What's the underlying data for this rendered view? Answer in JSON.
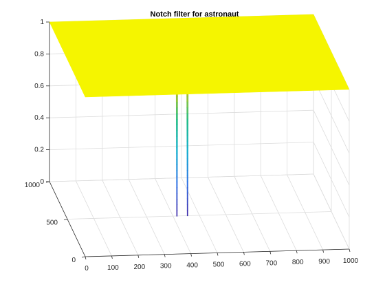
{
  "chart_data": {
    "type": "surface",
    "title": "Notch filter for astronaut",
    "xlabel": "",
    "ylabel": "",
    "zlabel": "",
    "xlim": [
      0,
      1000
    ],
    "ylim": [
      0,
      1000
    ],
    "zlim": [
      0,
      1
    ],
    "x_ticks": [
      "0",
      "100",
      "200",
      "300",
      "400",
      "500",
      "600",
      "700",
      "800",
      "900",
      "1000"
    ],
    "y_ticks": [
      "0",
      "500",
      "1000"
    ],
    "z_ticks": [
      "0",
      "0.2",
      "0.4",
      "0.6",
      "0.8",
      "1"
    ],
    "grid": true,
    "plateau_value": 1,
    "colormap": "parula",
    "notches": [
      {
        "x": 415,
        "y": 500,
        "min_value": 0
      },
      {
        "x": 455,
        "y": 500,
        "min_value": 0
      }
    ],
    "colors": {
      "plateau": "#f5f500",
      "axis": "#262626",
      "grid": "#dcdcdc"
    }
  }
}
